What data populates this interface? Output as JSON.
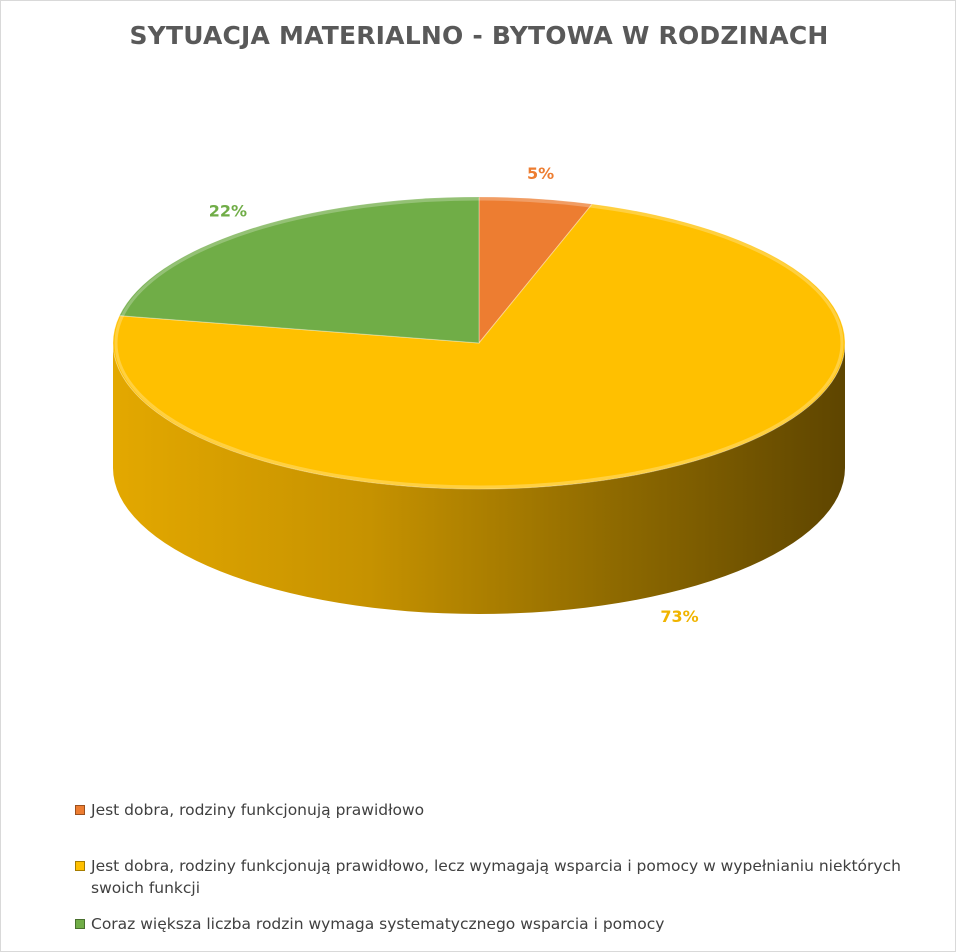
{
  "chart_data": {
    "type": "pie",
    "title": "SYTUACJA MATERIALNO - BYTOWA W RODZINACH",
    "categories": [
      "Jest dobra, rodziny funkcjonują prawidłowo",
      "Jest dobra, rodziny funkcjonują prawidłowo, lecz wymagają wsparcia i pomocy w wypełnianiu niektórych swoich funkcji",
      "Coraz większa liczba rodzin wymaga systematycznego wsparcia i pomocy"
    ],
    "values": [
      5,
      73,
      22
    ],
    "data_labels": [
      "5%",
      "73%",
      "22%"
    ],
    "colors": [
      "#ED7D31",
      "#FFC000",
      "#70AD47"
    ],
    "style": "3d",
    "legend": "bottom"
  }
}
